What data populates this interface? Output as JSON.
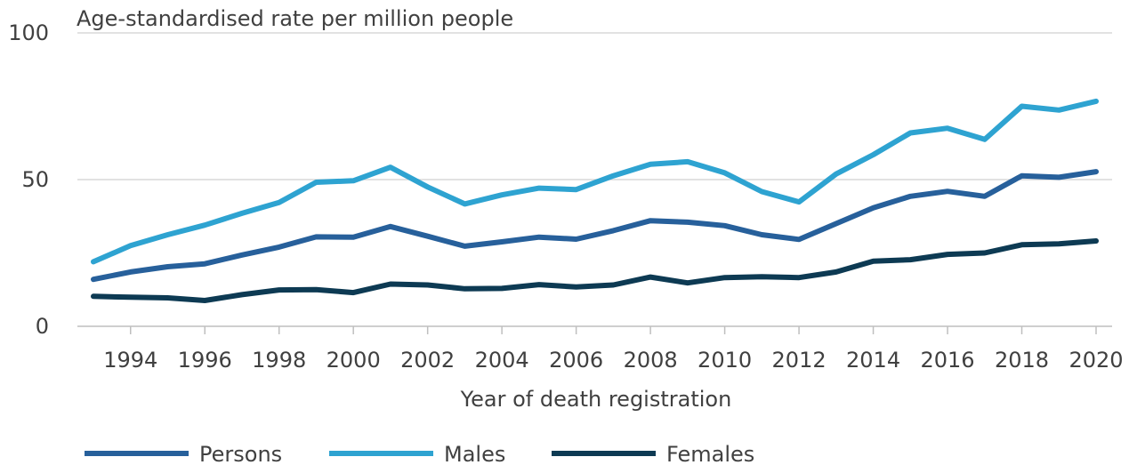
{
  "chart_data": {
    "type": "line",
    "title": "",
    "ylabel": "Age-standardised rate per million people",
    "xlabel": "Year of death registration",
    "ylim": [
      0,
      100
    ],
    "yticks": [
      0,
      50,
      100
    ],
    "xlim": [
      1993,
      2020
    ],
    "xticks": [
      1994,
      1996,
      1998,
      2000,
      2002,
      2004,
      2006,
      2008,
      2010,
      2012,
      2014,
      2016,
      2018,
      2020
    ],
    "grid": "horizontal",
    "legend_position": "bottom",
    "x": [
      1993,
      1994,
      1995,
      1996,
      1997,
      1998,
      1999,
      2000,
      2001,
      2002,
      2003,
      2004,
      2005,
      2006,
      2007,
      2008,
      2009,
      2010,
      2011,
      2012,
      2013,
      2014,
      2015,
      2016,
      2017,
      2018,
      2019,
      2020
    ],
    "series": [
      {
        "name": "Persons",
        "color": "#27609b",
        "values": [
          16,
          18.5,
          20.3,
          21.3,
          24.3,
          27,
          30.5,
          30.4,
          34,
          30.7,
          27.3,
          28.8,
          30.4,
          29.7,
          32.6,
          36,
          35.5,
          34.3,
          31.2,
          29.6,
          35,
          40.4,
          44.3,
          46,
          44.3,
          51.3,
          50.8,
          52.7
        ]
      },
      {
        "name": "Males",
        "color": "#2ea3d1",
        "values": [
          22,
          27.5,
          31.2,
          34.5,
          38.5,
          42.2,
          49.1,
          49.6,
          54.2,
          47.5,
          41.7,
          44.8,
          47.1,
          46.6,
          51.3,
          55.2,
          56.1,
          52.3,
          45.9,
          42.4,
          51.9,
          58.5,
          65.9,
          67.5,
          63.7,
          75,
          73.7,
          76.7
        ]
      },
      {
        "name": "Females",
        "color": "#0d3a53",
        "values": [
          10.2,
          9.9,
          9.7,
          8.8,
          10.8,
          12.4,
          12.5,
          11.5,
          14.4,
          14.1,
          12.8,
          12.9,
          14.2,
          13.4,
          14.1,
          16.8,
          14.8,
          16.6,
          16.9,
          16.6,
          18.5,
          22.2,
          22.7,
          24.5,
          25,
          27.8,
          28.1,
          29.1
        ]
      }
    ]
  }
}
